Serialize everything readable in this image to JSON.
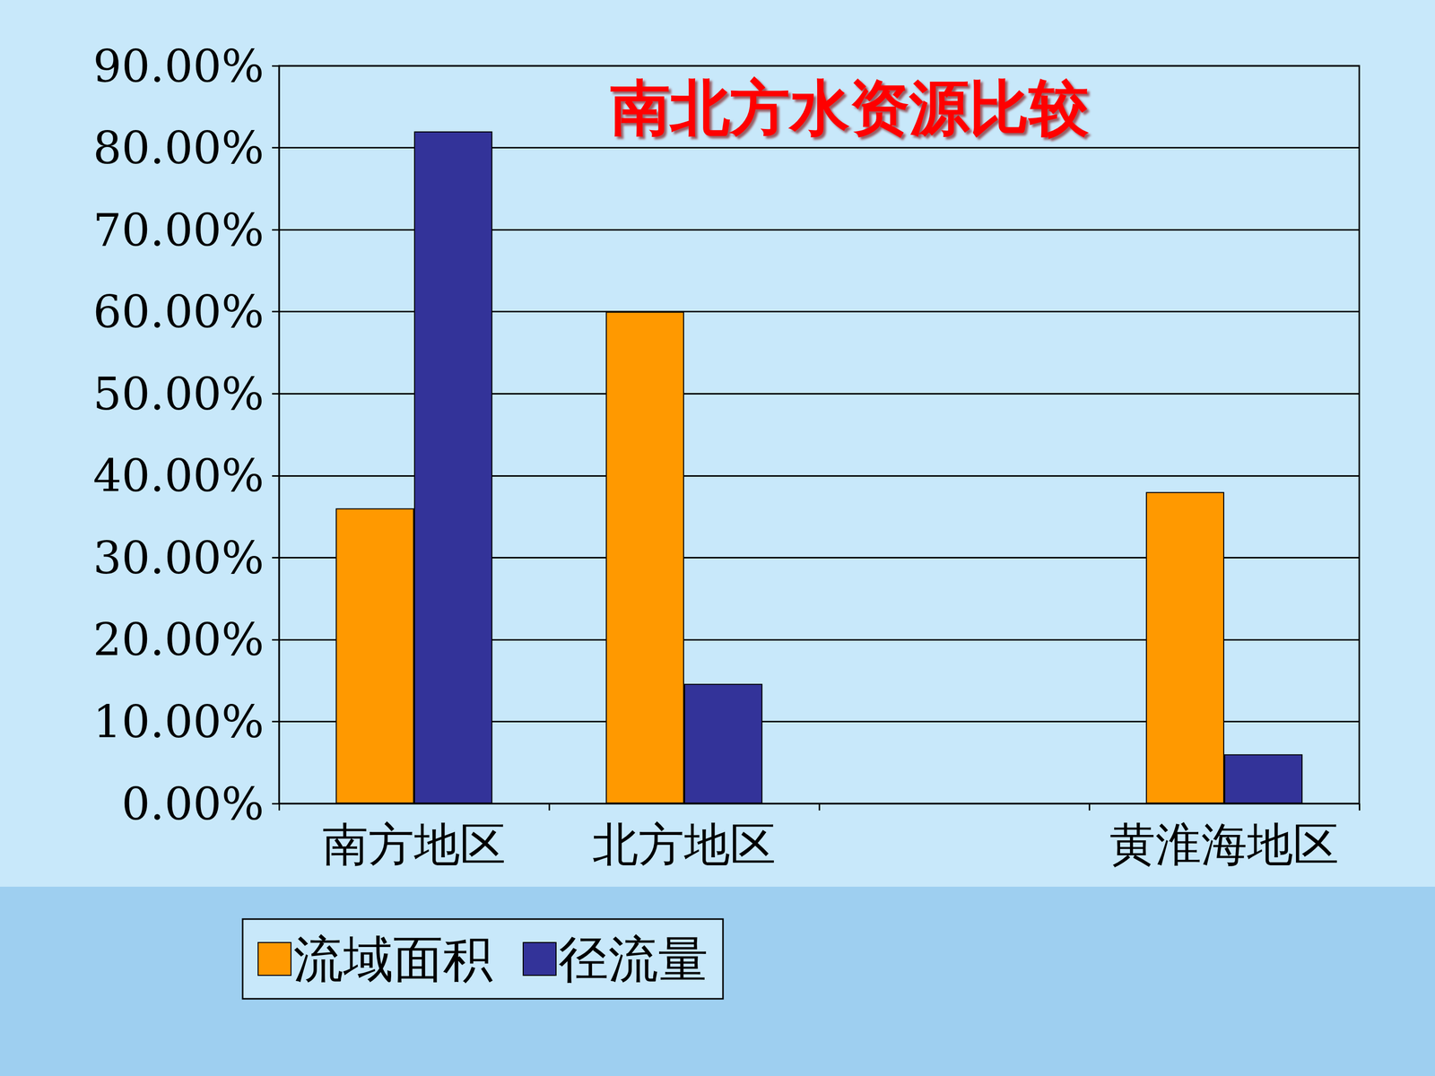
{
  "chart_data": {
    "type": "bar",
    "title": "南北方水资源比较",
    "categories": [
      "南方地区",
      "北方地区",
      null,
      "黄淮海地区"
    ],
    "series": [
      {
        "name": "流域面积",
        "color": "#FF9900",
        "values": [
          36,
          60,
          null,
          38
        ]
      },
      {
        "name": "径流量",
        "color": "#333399",
        "values": [
          82,
          14.6,
          null,
          6
        ]
      }
    ],
    "ylim": [
      0,
      90
    ],
    "yticks": [
      {
        "value": 0,
        "label": "0.00%"
      },
      {
        "value": 10,
        "label": "10.00%"
      },
      {
        "value": 20,
        "label": "20.00%"
      },
      {
        "value": 30,
        "label": "30.00%"
      },
      {
        "value": 40,
        "label": "40.00%"
      },
      {
        "value": 50,
        "label": "50.00%"
      },
      {
        "value": 60,
        "label": "60.00%"
      },
      {
        "value": 70,
        "label": "70.00%"
      },
      {
        "value": 80,
        "label": "80.00%"
      },
      {
        "value": 90,
        "label": "90.00%"
      }
    ],
    "grid": true,
    "legend": "bottom"
  }
}
